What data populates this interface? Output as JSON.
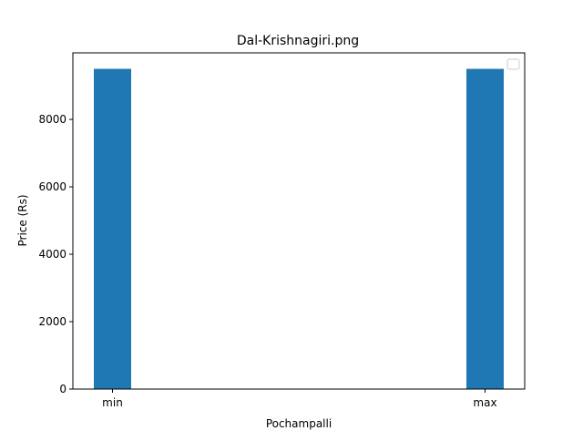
{
  "chart_data": {
    "type": "bar",
    "title": "Dal-Krishnagiri.png",
    "xlabel": "Pochampalli",
    "ylabel": "Price (Rs)",
    "categories": [
      "min",
      "max"
    ],
    "values": [
      9500,
      9500
    ],
    "ylim": [
      0,
      9975
    ],
    "yticks": [
      0,
      2000,
      4000,
      6000,
      8000
    ],
    "grid": false,
    "legend": "top-right",
    "colors": {
      "bar": "#1f77b4",
      "axis": "#000000",
      "legend_border": "#cccccc"
    }
  }
}
